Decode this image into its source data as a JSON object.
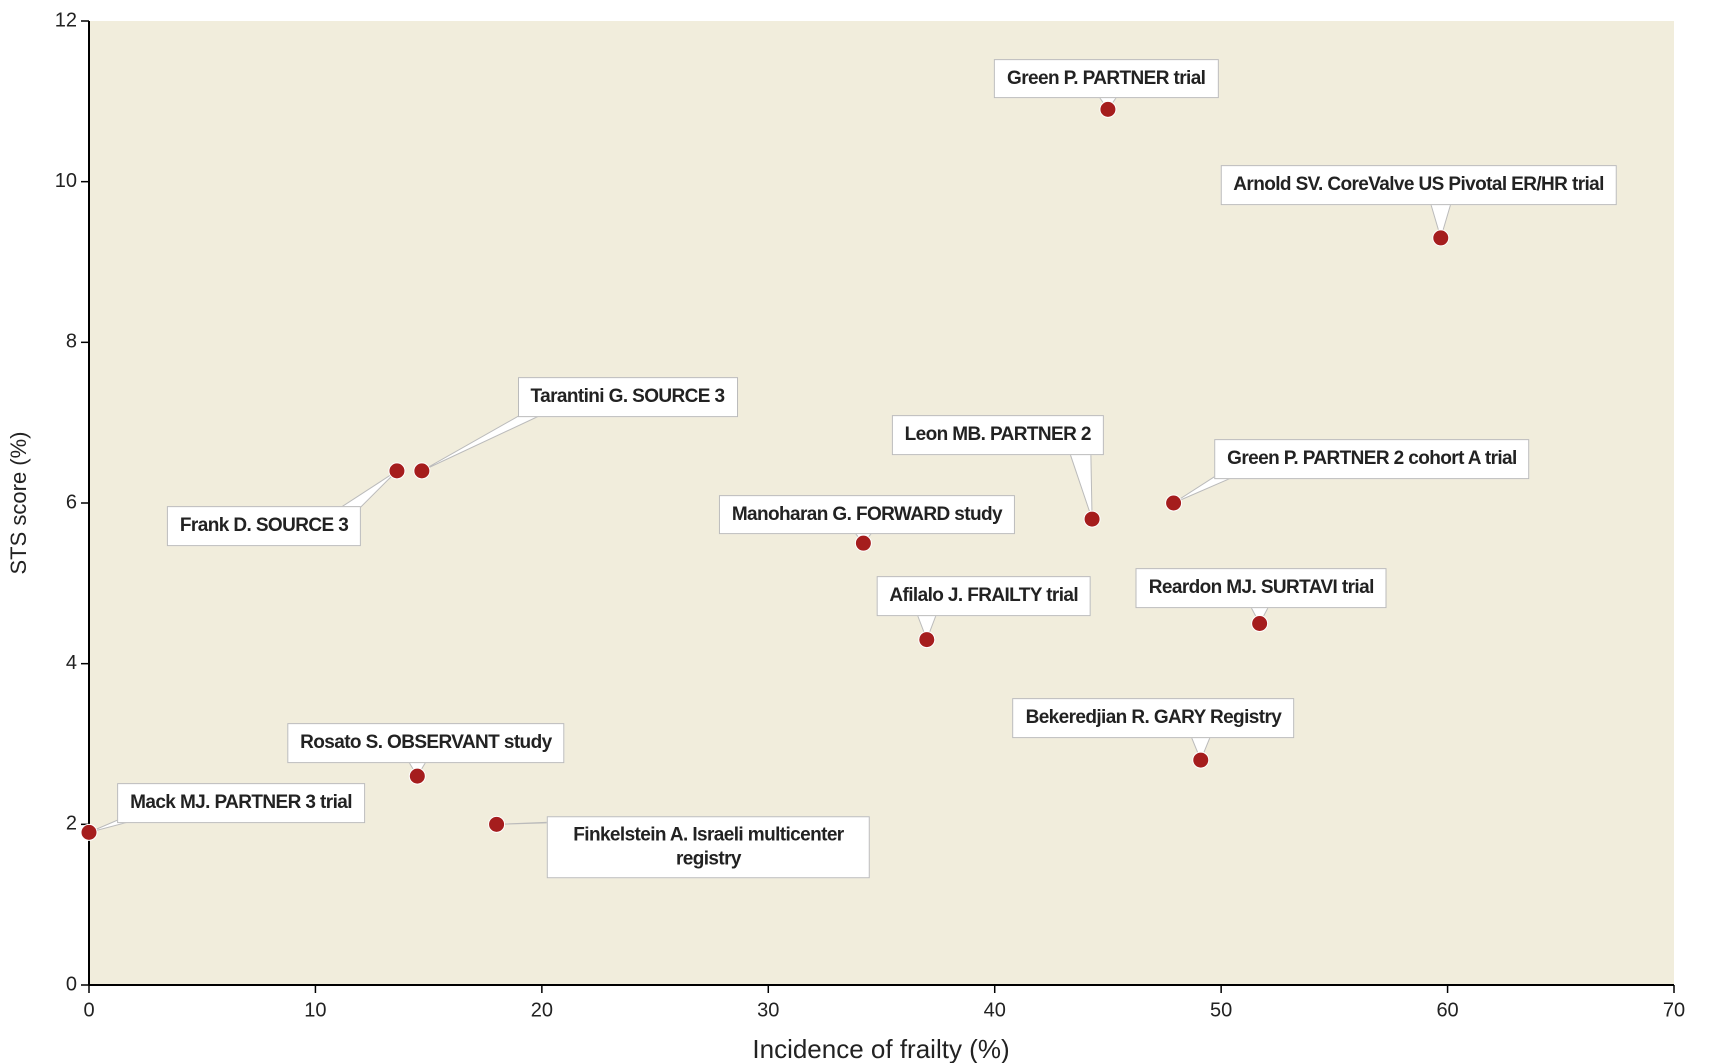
{
  "chart_data": {
    "type": "scatter",
    "x_label": "Incidence of frailty (%)",
    "y_label": "STS score (%)",
    "xlim": [
      0,
      70
    ],
    "xticks": [
      0,
      10,
      20,
      30,
      40,
      50,
      60,
      70
    ],
    "ylim": [
      0,
      12
    ],
    "yticks": [
      0,
      2,
      4,
      6,
      8,
      10,
      12
    ],
    "color": "#a51d1d",
    "background": "#f1eddc",
    "points": [
      {
        "label": "Green P. PARTNER trial",
        "x": 45.0,
        "y": 10.9
      },
      {
        "label": "Arnold SV. CoreValve US Pivotal ER/HR trial",
        "x": 59.7,
        "y": 9.3
      },
      {
        "label": "Tarantini G. SOURCE 3",
        "x": 14.7,
        "y": 6.4
      },
      {
        "label": "Frank D. SOURCE 3",
        "x": 13.6,
        "y": 6.4
      },
      {
        "label": "Leon MB. PARTNER 2",
        "x": 44.3,
        "y": 5.8
      },
      {
        "label": "Green P. PARTNER 2 cohort A trial",
        "x": 47.9,
        "y": 6.0
      },
      {
        "label": "Manoharan G. FORWARD study",
        "x": 34.2,
        "y": 5.5
      },
      {
        "label": "Afilalo J. FRAILTY trial",
        "x": 37.0,
        "y": 4.3
      },
      {
        "label": "Reardon MJ. SURTAVI trial",
        "x": 51.7,
        "y": 4.5
      },
      {
        "label": "Bekeredjian R. GARY Registry",
        "x": 49.1,
        "y": 2.8
      },
      {
        "label": "Rosato S. OBSERVANT study",
        "x": 14.5,
        "y": 2.6
      },
      {
        "label": "Mack MJ. PARTNER 3 trial",
        "x": 0.0,
        "y": 1.9
      },
      {
        "label": "Finkelstein A. Israeli multicenter registry",
        "x": 18.0,
        "y": 2.0
      }
    ]
  }
}
